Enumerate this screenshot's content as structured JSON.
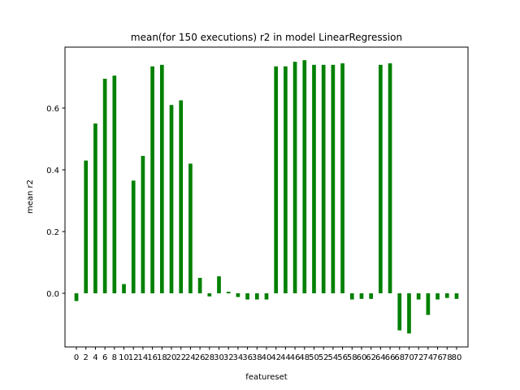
{
  "chart_data": {
    "type": "bar",
    "title": "mean(for 150 executions) r2 in model LinearRegression",
    "xlabel": "featureset",
    "ylabel": "mean r2",
    "bar_color": "#008000",
    "grid": false,
    "ylim": [
      -0.2,
      0.8
    ],
    "yticks": [
      0.0,
      0.2,
      0.4,
      0.6
    ],
    "ytick_labels": [
      "0.0",
      "0.2",
      "0.4",
      "0.6"
    ],
    "xticks": [
      0,
      2,
      4,
      6,
      8,
      10,
      12,
      14,
      16,
      18,
      20,
      22,
      24,
      26,
      28,
      30,
      32,
      34,
      36,
      38,
      40,
      42,
      44,
      46,
      48,
      50,
      52,
      54,
      56,
      58,
      60,
      62,
      64,
      66,
      68,
      70,
      72,
      74,
      76,
      78,
      80
    ],
    "xtick_labels": [
      "0",
      "2",
      "4",
      "6",
      "8",
      "10",
      "12",
      "14",
      "16",
      "18",
      "20",
      "22",
      "24",
      "26",
      "28",
      "30",
      "32",
      "34",
      "36",
      "38",
      "40",
      "42",
      "44",
      "46",
      "48",
      "50",
      "52",
      "54",
      "56",
      "58",
      "60",
      "62",
      "64",
      "66",
      "68",
      "70",
      "72",
      "74",
      "76",
      "78",
      "80"
    ],
    "x": [
      0,
      2,
      4,
      6,
      8,
      10,
      12,
      14,
      16,
      18,
      20,
      22,
      24,
      26,
      28,
      30,
      32,
      34,
      36,
      38,
      40,
      42,
      44,
      46,
      48,
      50,
      52,
      54,
      56,
      58,
      60,
      62,
      64,
      66,
      68,
      70,
      72,
      74,
      76,
      78,
      80
    ],
    "values": [
      -0.025,
      0.43,
      0.55,
      0.695,
      0.705,
      0.03,
      0.365,
      0.445,
      0.735,
      0.74,
      0.61,
      0.625,
      0.42,
      0.05,
      -0.01,
      0.055,
      0.005,
      -0.012,
      -0.02,
      -0.02,
      -0.02,
      0.735,
      0.735,
      0.75,
      0.755,
      0.74,
      0.74,
      0.74,
      0.745,
      -0.02,
      -0.018,
      -0.018,
      0.74,
      0.745,
      -0.12,
      -0.13,
      -0.02,
      -0.07,
      -0.02,
      -0.015,
      -0.018
    ]
  }
}
